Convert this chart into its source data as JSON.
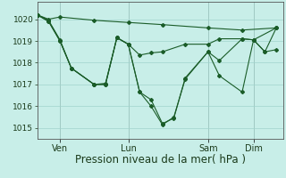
{
  "background_color": "#c8eee8",
  "grid_color": "#a0d4cc",
  "line_color": "#1a5c28",
  "xlabel": "Pression niveau de la mer( hPa )",
  "xlabel_fontsize": 8.5,
  "ylim": [
    1014.5,
    1020.8
  ],
  "yticks": [
    1015,
    1016,
    1017,
    1018,
    1019,
    1020
  ],
  "ytick_fontsize": 6.5,
  "xtick_labels": [
    "Ven",
    "Lun",
    "Sam",
    "Dim"
  ],
  "xtick_positions": [
    1.0,
    4.0,
    7.5,
    9.5
  ],
  "xlim": [
    0.0,
    10.8
  ],
  "series_x": [
    [
      0.0,
      0.5,
      1.0,
      2.5,
      4.0,
      5.5,
      7.5,
      9.0,
      10.5
    ],
    [
      0.0,
      0.5,
      1.0,
      1.5,
      2.5,
      3.0,
      3.5,
      4.0,
      4.5,
      5.0,
      5.5,
      6.5,
      7.5,
      8.0,
      9.0,
      9.5,
      10.5
    ],
    [
      0.0,
      0.5,
      1.0,
      1.5,
      2.5,
      3.0,
      3.5,
      4.0,
      4.5,
      5.0,
      5.5,
      6.0,
      6.5,
      7.5,
      8.0,
      9.0,
      9.5,
      10.0,
      10.5
    ],
    [
      0.0,
      0.5,
      1.0,
      1.5,
      2.5,
      3.0,
      3.5,
      4.0,
      4.5,
      5.0,
      5.5,
      6.0,
      6.5,
      7.5,
      8.0,
      9.0,
      9.5,
      10.0,
      10.5
    ]
  ],
  "series_y": [
    [
      1020.2,
      1020.0,
      1020.1,
      1019.95,
      1019.85,
      1019.75,
      1019.6,
      1019.5,
      1019.6
    ],
    [
      1020.2,
      1019.95,
      1019.05,
      1017.75,
      1017.0,
      1017.05,
      1019.15,
      1018.85,
      1018.35,
      1018.45,
      1018.5,
      1018.85,
      1018.85,
      1019.1,
      1019.1,
      1019.05,
      1019.6
    ],
    [
      1020.2,
      1019.9,
      1019.0,
      1017.75,
      1017.0,
      1017.0,
      1019.15,
      1018.85,
      1016.65,
      1016.3,
      1015.2,
      1015.45,
      1017.3,
      1018.5,
      1018.1,
      1019.1,
      1019.05,
      1018.5,
      1019.6
    ],
    [
      1020.2,
      1019.9,
      1019.0,
      1017.75,
      1017.0,
      1017.0,
      1019.15,
      1018.85,
      1016.65,
      1016.0,
      1015.15,
      1015.5,
      1017.25,
      1018.5,
      1017.4,
      1016.65,
      1019.05,
      1018.5,
      1018.6
    ]
  ]
}
